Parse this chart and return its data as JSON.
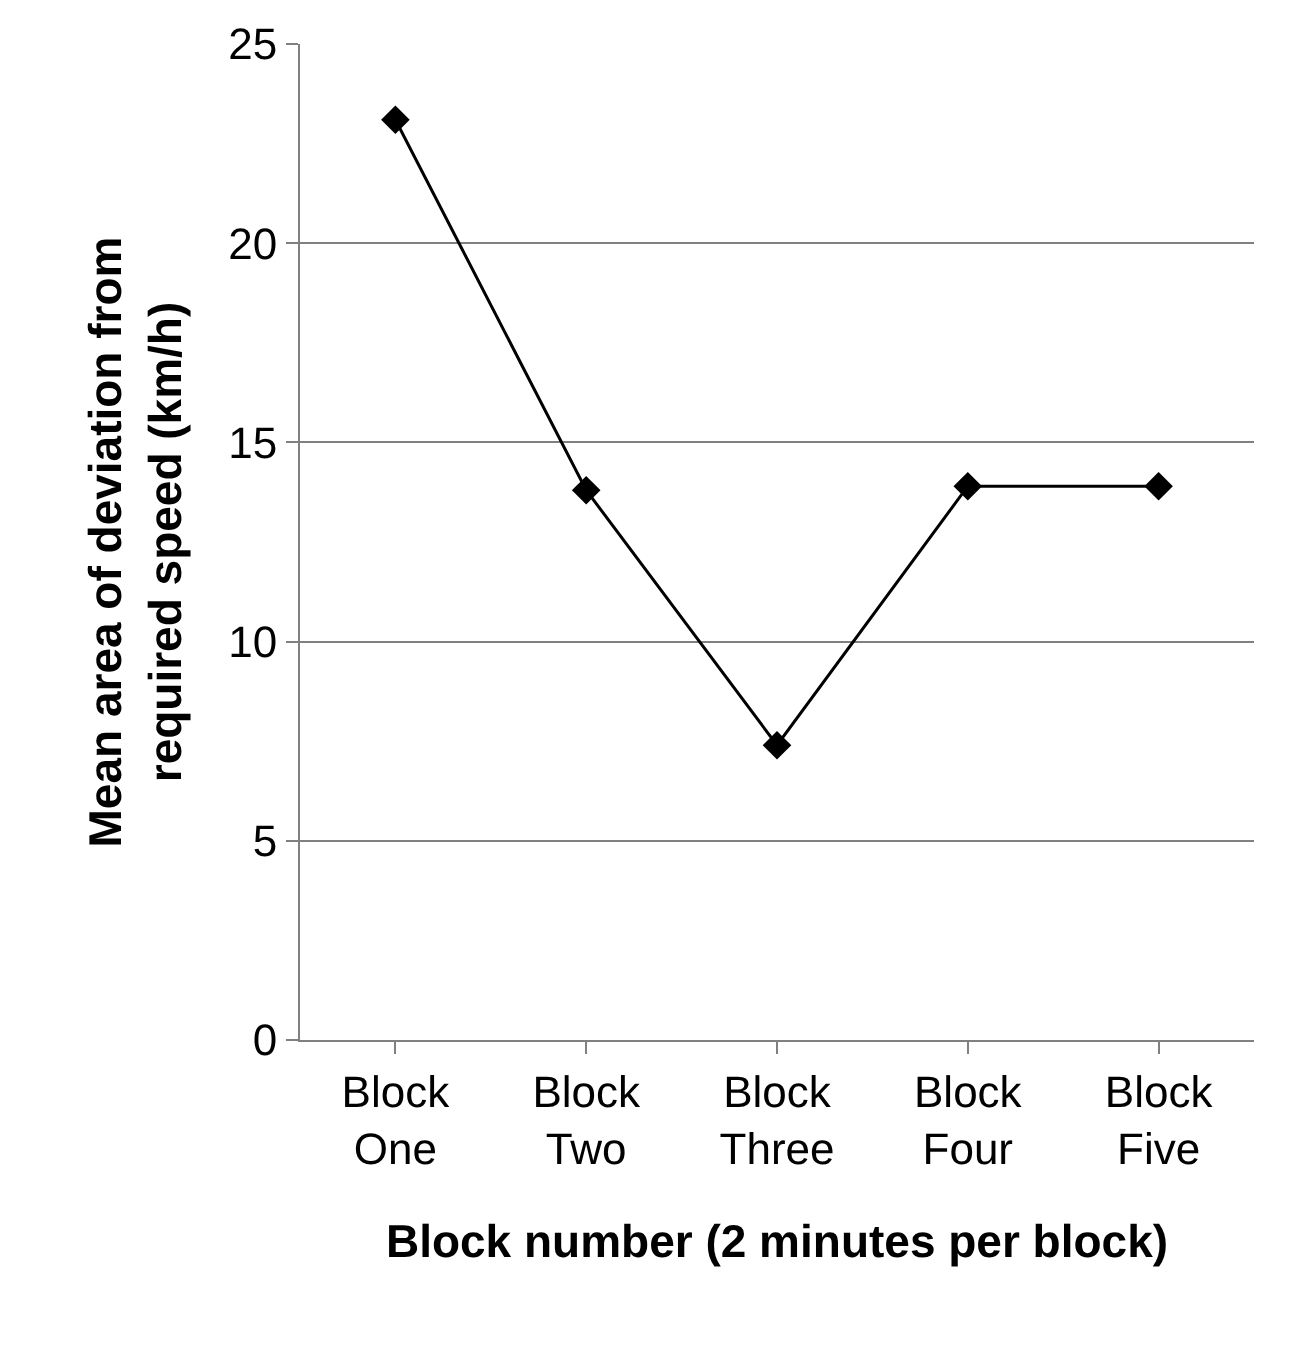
{
  "chart_data": {
    "type": "line",
    "xlabel": "Block number (2 minutes per block)",
    "ylabel": "Mean area of deviation from required speed (km/h)",
    "categories": [
      "Block One",
      "Block Two",
      "Block Three",
      "Block Four",
      "Block Five"
    ],
    "series": [
      {
        "color": "#000000",
        "values": [
          23.1,
          13.8,
          7.4,
          13.9,
          13.9
        ]
      }
    ],
    "ylim": [
      0,
      25
    ],
    "yticks": [
      0,
      5,
      10,
      15,
      20,
      25
    ],
    "grid": "y",
    "marker": "diamond",
    "line_style": "solid"
  }
}
